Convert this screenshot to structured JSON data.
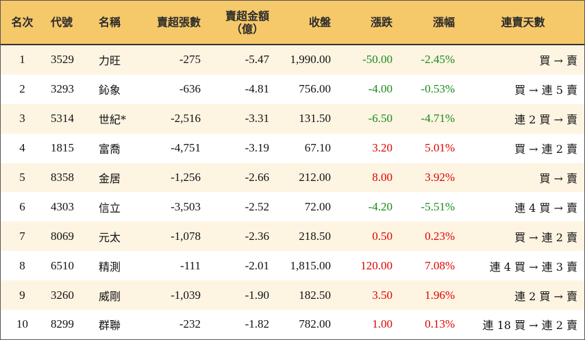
{
  "headers": {
    "rank": "名次",
    "code": "代號",
    "name": "名稱",
    "net_sell_lots": "賣超張數",
    "net_sell_amount_line1": "賣超金額",
    "net_sell_amount_line2": "（億）",
    "close": "收盤",
    "change": "漲跌",
    "change_pct": "漲幅",
    "streak": "連賣天數"
  },
  "colors": {
    "header_bg": "#f5c86a",
    "row_alt_bg": "#fdf4e2",
    "up": "#e00000",
    "down": "#1a8a1a"
  },
  "rows": [
    {
      "rank": "1",
      "code": "3529",
      "name": "力旺",
      "lots": "-275",
      "amount": "-5.47",
      "close": "1,990.00",
      "change": "-50.00",
      "pct": "-2.45%",
      "streak": "買 → 賣",
      "dir": "down"
    },
    {
      "rank": "2",
      "code": "3293",
      "name": "鈊象",
      "lots": "-636",
      "amount": "-4.81",
      "close": "756.00",
      "change": "-4.00",
      "pct": "-0.53%",
      "streak": "買 → 連 5 賣",
      "dir": "down"
    },
    {
      "rank": "3",
      "code": "5314",
      "name": "世紀*",
      "lots": "-2,516",
      "amount": "-3.31",
      "close": "131.50",
      "change": "-6.50",
      "pct": "-4.71%",
      "streak": "連 2 買 → 賣",
      "dir": "down"
    },
    {
      "rank": "4",
      "code": "1815",
      "name": "富喬",
      "lots": "-4,751",
      "amount": "-3.19",
      "close": "67.10",
      "change": "3.20",
      "pct": "5.01%",
      "streak": "買 → 連 2 賣",
      "dir": "up"
    },
    {
      "rank": "5",
      "code": "8358",
      "name": "金居",
      "lots": "-1,256",
      "amount": "-2.66",
      "close": "212.00",
      "change": "8.00",
      "pct": "3.92%",
      "streak": "買 → 賣",
      "dir": "up"
    },
    {
      "rank": "6",
      "code": "4303",
      "name": "信立",
      "lots": "-3,503",
      "amount": "-2.52",
      "close": "72.00",
      "change": "-4.20",
      "pct": "-5.51%",
      "streak": "連 4 買 → 賣",
      "dir": "down"
    },
    {
      "rank": "7",
      "code": "8069",
      "name": "元太",
      "lots": "-1,078",
      "amount": "-2.36",
      "close": "218.50",
      "change": "0.50",
      "pct": "0.23%",
      "streak": "買 → 連 2 賣",
      "dir": "up"
    },
    {
      "rank": "8",
      "code": "6510",
      "name": "精測",
      "lots": "-111",
      "amount": "-2.01",
      "close": "1,815.00",
      "change": "120.00",
      "pct": "7.08%",
      "streak": "連 4 買 → 連 3 賣",
      "dir": "up"
    },
    {
      "rank": "9",
      "code": "3260",
      "name": "威剛",
      "lots": "-1,039",
      "amount": "-1.90",
      "close": "182.50",
      "change": "3.50",
      "pct": "1.96%",
      "streak": "連 2 買 → 賣",
      "dir": "up"
    },
    {
      "rank": "10",
      "code": "8299",
      "name": "群聯",
      "lots": "-232",
      "amount": "-1.82",
      "close": "782.00",
      "change": "1.00",
      "pct": "0.13%",
      "streak": "連 18 買 → 連 2 賣",
      "dir": "up"
    }
  ]
}
